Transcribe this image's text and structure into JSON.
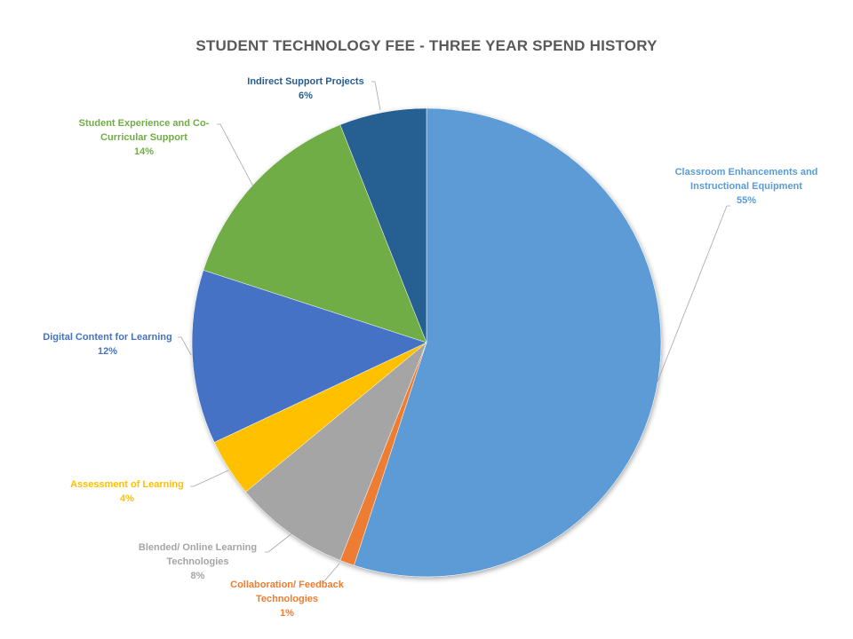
{
  "chart_data": {
    "type": "pie",
    "title": "STUDENT TECHNOLOGY FEE - THREE YEAR SPEND HISTORY",
    "start_angle_deg": 0,
    "direction": "clockwise",
    "slices": [
      {
        "label": "Classroom Enhancements and Instructional Equipment",
        "value": 55,
        "value_label": "55%",
        "color": "#5B9BD5",
        "label_color": "#5B9BD5"
      },
      {
        "label": "Collaboration/ Feedback Technologies",
        "value": 1,
        "value_label": "1%",
        "color": "#ED7D31",
        "label_color": "#ED7D31"
      },
      {
        "label": "Blended/ Online Learning Technologies",
        "value": 8,
        "value_label": "8%",
        "color": "#A5A5A5",
        "label_color": "#A5A5A5"
      },
      {
        "label": "Assessment of Learning",
        "value": 4,
        "value_label": "4%",
        "color": "#FFC000",
        "label_color": "#FFC000"
      },
      {
        "label": "Digital Content for Learning",
        "value": 12,
        "value_label": "12%",
        "color": "#4472C4",
        "label_color": "#4472C4"
      },
      {
        "label": "Student Experience and Co-Curricular Support",
        "value": 14,
        "value_label": "14%",
        "color": "#70AD47",
        "label_color": "#70AD47"
      },
      {
        "label": "Indirect Support Projects",
        "value": 6,
        "value_label": "6%",
        "color": "#255E91",
        "label_color": "#255E91"
      }
    ]
  }
}
